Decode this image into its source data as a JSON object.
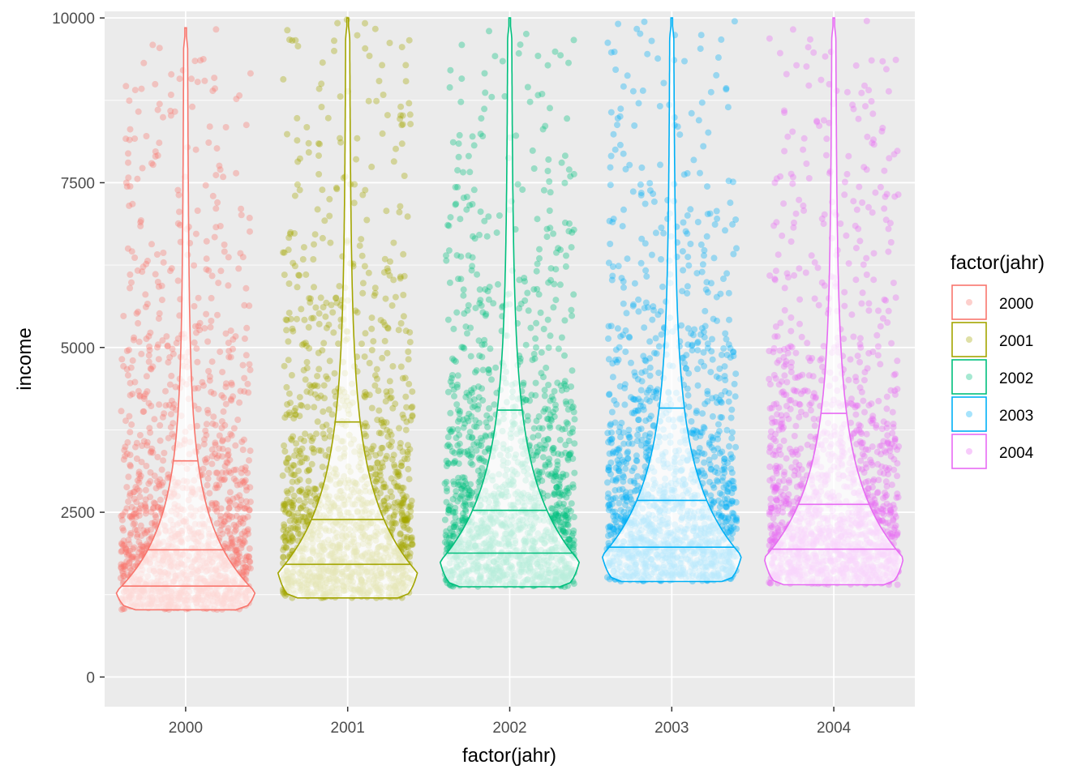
{
  "chart_data": {
    "type": "violin",
    "title": "",
    "xlabel": "factor(jahr)",
    "ylabel": "income",
    "ylim": [
      -450,
      10100
    ],
    "y_ticks": [
      0,
      2500,
      5000,
      7500,
      10000
    ],
    "y_tick_labels": [
      "0",
      "2500",
      "5000",
      "7500",
      "10000"
    ],
    "categories": [
      "2000",
      "2001",
      "2002",
      "2003",
      "2004"
    ],
    "legend": {
      "title": "factor(jahr)",
      "position": "right",
      "entries": [
        "2000",
        "2001",
        "2002",
        "2003",
        "2004"
      ]
    },
    "grid": true,
    "background": "#ebebeb",
    "overlay": "jittered points, alpha 0.35",
    "series": [
      {
        "name": "2000",
        "color": "#F8766D",
        "min": 1020,
        "max": 9850,
        "quantiles": [
          1380,
          1930,
          3280
        ]
      },
      {
        "name": "2001",
        "color": "#A3A500",
        "min": 1200,
        "max": 10000,
        "quantiles": [
          1710,
          2390,
          3870
        ]
      },
      {
        "name": "2002",
        "color": "#00BF7D",
        "min": 1370,
        "max": 10000,
        "quantiles": [
          1880,
          2530,
          4050
        ]
      },
      {
        "name": "2003",
        "color": "#00B0F6",
        "min": 1450,
        "max": 10000,
        "quantiles": [
          1970,
          2680,
          4080
        ]
      },
      {
        "name": "2004",
        "color": "#E76BF3",
        "min": 1400,
        "max": 10000,
        "quantiles": [
          1940,
          2620,
          4000
        ]
      }
    ]
  }
}
